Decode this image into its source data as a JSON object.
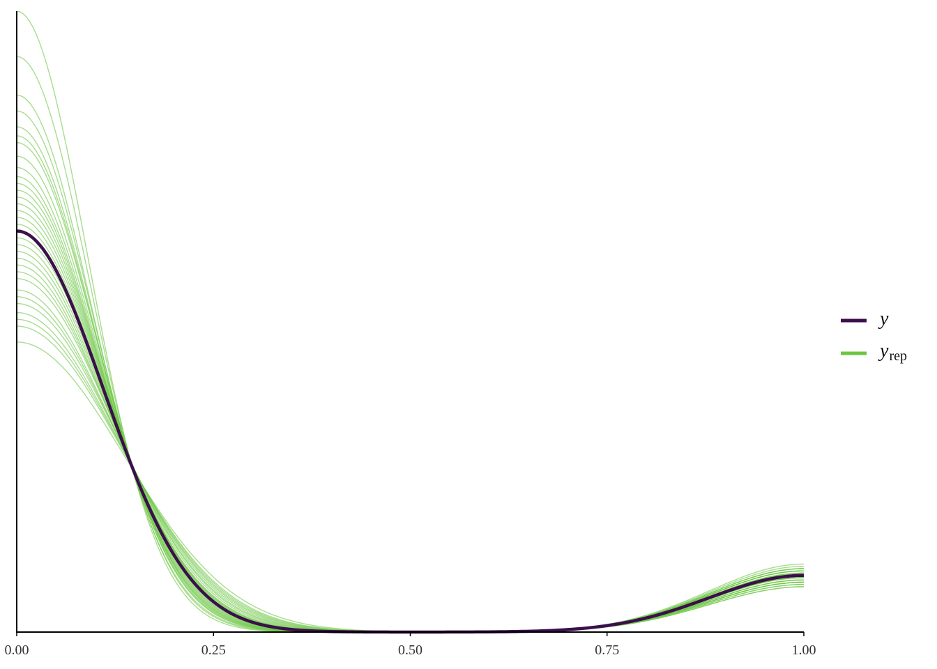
{
  "chart_data": {
    "type": "line",
    "title": "",
    "xlabel": "",
    "ylabel": "",
    "xlim": [
      0,
      1
    ],
    "x_ticks": [
      "0.00",
      "0.25",
      "0.50",
      "0.75",
      "1.00"
    ],
    "y_ticks_shown": false,
    "y_max": 2.74,
    "grid": false,
    "legend_position": "right",
    "colors": {
      "y": "#3b0f4c",
      "yrep": "#6cc644"
    },
    "legend": {
      "y": {
        "main": "y",
        "sub": ""
      },
      "yrep": {
        "main": "y",
        "sub": "rep"
      }
    },
    "series_model": {
      "description_fields": [
        "a",
        "sa",
        "b",
        "mb",
        "sb"
      ],
      "y": {
        "name": "y",
        "a": 1.77,
        "sa": 0.11,
        "b": 0.25,
        "mb": 1.0,
        "sb": 0.12
      }
    },
    "yrep_params": [
      [
        2.74,
        0.09,
        0.27,
        1.0,
        0.12
      ],
      [
        2.54,
        0.093,
        0.28,
        1.0,
        0.12
      ],
      [
        2.37,
        0.095,
        0.24,
        1.0,
        0.12
      ],
      [
        2.3,
        0.097,
        0.26,
        1.0,
        0.12
      ],
      [
        2.23,
        0.098,
        0.22,
        1.0,
        0.12
      ],
      [
        2.19,
        0.099,
        0.29,
        1.0,
        0.12
      ],
      [
        2.16,
        0.1,
        0.25,
        1.0,
        0.12
      ],
      [
        2.1,
        0.101,
        0.23,
        1.0,
        0.12
      ],
      [
        2.05,
        0.102,
        0.27,
        1.0,
        0.12
      ],
      [
        2.01,
        0.103,
        0.21,
        1.0,
        0.12
      ],
      [
        1.98,
        0.104,
        0.26,
        1.0,
        0.12
      ],
      [
        1.95,
        0.105,
        0.24,
        1.0,
        0.12
      ],
      [
        1.92,
        0.106,
        0.28,
        1.0,
        0.12
      ],
      [
        1.89,
        0.107,
        0.22,
        1.0,
        0.12
      ],
      [
        1.86,
        0.108,
        0.25,
        1.0,
        0.12
      ],
      [
        1.83,
        0.109,
        0.3,
        1.0,
        0.12
      ],
      [
        1.8,
        0.11,
        0.2,
        1.0,
        0.12
      ],
      [
        1.77,
        0.111,
        0.27,
        1.0,
        0.12
      ],
      [
        1.74,
        0.112,
        0.23,
        1.0,
        0.12
      ],
      [
        1.71,
        0.113,
        0.26,
        1.0,
        0.12
      ],
      [
        1.68,
        0.114,
        0.24,
        1.0,
        0.12
      ],
      [
        1.65,
        0.115,
        0.22,
        1.0,
        0.12
      ],
      [
        1.62,
        0.116,
        0.28,
        1.0,
        0.12
      ],
      [
        1.59,
        0.118,
        0.25,
        1.0,
        0.12
      ],
      [
        1.56,
        0.12,
        0.21,
        1.0,
        0.12
      ],
      [
        1.51,
        0.122,
        0.27,
        1.0,
        0.12
      ],
      [
        1.48,
        0.124,
        0.23,
        1.0,
        0.12
      ],
      [
        1.45,
        0.126,
        0.26,
        1.0,
        0.12
      ],
      [
        1.41,
        0.128,
        0.24,
        1.0,
        0.12
      ],
      [
        1.38,
        0.13,
        0.22,
        1.0,
        0.12
      ],
      [
        1.35,
        0.132,
        0.25,
        1.0,
        0.12
      ],
      [
        1.28,
        0.137,
        0.2,
        1.0,
        0.12
      ]
    ]
  }
}
